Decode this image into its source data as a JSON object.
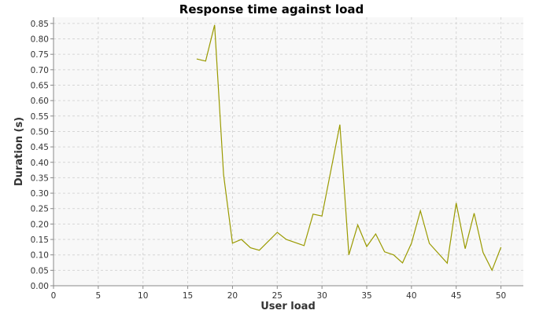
{
  "chart_data": {
    "type": "line",
    "title": "Response time against load",
    "xlabel": "User load",
    "ylabel": "Duration (s)",
    "xlim": [
      0,
      52.5
    ],
    "ylim": [
      0,
      0.87
    ],
    "x_ticks": [
      "0",
      "5",
      "10",
      "15",
      "20",
      "25",
      "30",
      "35",
      "40",
      "45",
      "50"
    ],
    "y_ticks": [
      "0.00",
      "0.05",
      "0.10",
      "0.15",
      "0.20",
      "0.25",
      "0.30",
      "0.35",
      "0.40",
      "0.45",
      "0.50",
      "0.55",
      "0.60",
      "0.65",
      "0.70",
      "0.75",
      "0.80",
      "0.85"
    ],
    "grid": true,
    "legend": "none",
    "colors": {
      "series": "#9a9a00",
      "plot_bg": "#f8f8f8"
    },
    "series": [
      {
        "x": [
          16,
          17,
          18,
          19,
          20,
          21,
          22,
          23,
          25,
          26,
          28,
          29,
          30,
          32,
          33,
          34,
          35,
          36,
          37,
          38,
          39,
          40,
          41,
          42,
          44,
          45,
          46,
          47,
          48,
          49,
          50
        ],
        "y": [
          0.735,
          0.728,
          0.845,
          0.36,
          0.138,
          0.15,
          0.123,
          0.115,
          0.173,
          0.15,
          0.13,
          0.232,
          0.226,
          0.522,
          0.1,
          0.197,
          0.127,
          0.168,
          0.11,
          0.1,
          0.074,
          0.138,
          0.243,
          0.137,
          0.073,
          0.268,
          0.12,
          0.235,
          0.108,
          0.05,
          0.125
        ]
      }
    ]
  }
}
